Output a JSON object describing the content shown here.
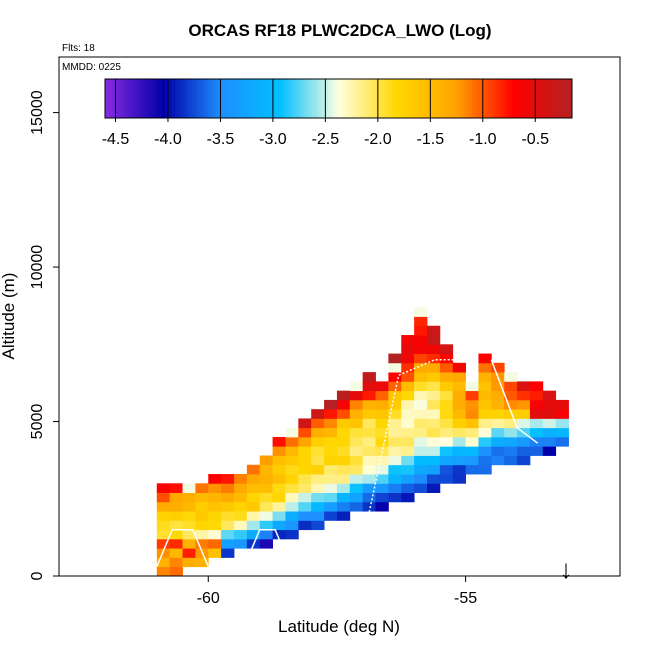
{
  "chart_data": {
    "type": "heatmap",
    "title": "ORCAS RF18 PLWC2DCA_LWO (Log)",
    "flights_label": "Flts: 18",
    "date_label": "MMDD: 0225",
    "xlabel": "Latitude (deg N)",
    "ylabel": "Altitude (m)",
    "xlim": [
      -62.9,
      -52.0
    ],
    "ylim": [
      0,
      16800
    ],
    "x_ticks": [
      -60,
      -55
    ],
    "x_tick_labels": [
      "-60",
      "-55"
    ],
    "y_ticks": [
      0,
      5000,
      10000,
      15000
    ],
    "y_tick_labels": [
      "0",
      "5000",
      "10000",
      "15000"
    ],
    "colorbar": {
      "range": [
        -4.6,
        -0.15
      ],
      "ticks": [
        -4.5,
        -4.0,
        -3.5,
        -3.0,
        -2.5,
        -2.0,
        -1.5,
        -1.0,
        -0.5
      ],
      "tick_labels": [
        "-4.5",
        "-4.0",
        "-3.5",
        "-3.0",
        "-2.5",
        "-2.0",
        "-1.5",
        "-1.0",
        "-0.5"
      ],
      "colors": [
        "#8a2be2",
        "#0000a8",
        "#1e90ff",
        "#00bfff",
        "#ffffe0",
        "#ffd700",
        "#ffa500",
        "#ff0000",
        "#b22222"
      ]
    },
    "cell_size": {
      "lat": 0.25,
      "alt": 300
    },
    "field_description": "log10 liquid water content binned by latitude and altitude; values follow the slanted layered pattern of the climb/descent profiles",
    "cloud_band": {
      "lat_start": -61.0,
      "lat_end": -53.2,
      "alt_low_start": 100,
      "alt_low_end": 4300,
      "alt_high_start": 2700,
      "alt_high_end": 5500
    },
    "peak_column": {
      "lat_start": -56.9,
      "lat_end": -55.0,
      "alt_top": 8600
    },
    "marker": {
      "label": "↓",
      "lat": -53.05
    }
  }
}
